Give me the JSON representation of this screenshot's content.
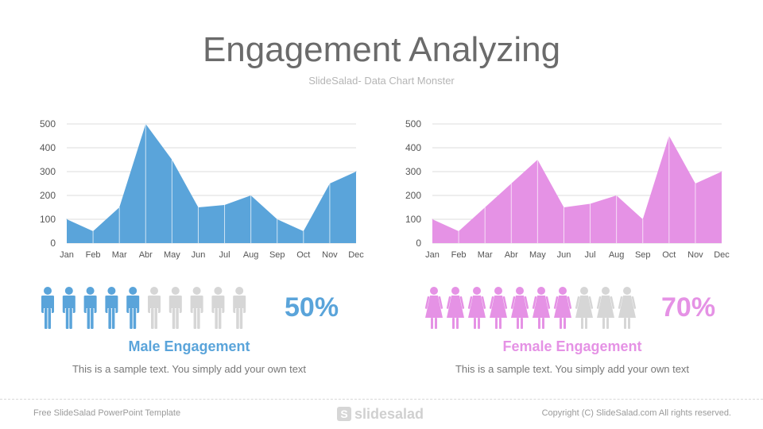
{
  "header": {
    "title": "Engagement Analyzing",
    "subtitle": "SlideSalad- Data Chart Monster"
  },
  "chart_data": [
    {
      "type": "area",
      "categories": [
        "Jan",
        "Feb",
        "Mar",
        "Abr",
        "May",
        "Jun",
        "Jul",
        "Aug",
        "Sep",
        "Oct",
        "Nov",
        "Dec"
      ],
      "values": [
        100,
        50,
        150,
        500,
        350,
        150,
        160,
        200,
        100,
        50,
        250,
        300
      ],
      "yticks": [
        "0",
        "100",
        "200",
        "300",
        "400",
        "500"
      ],
      "ylim": [
        0,
        500
      ],
      "grid": true,
      "color": "#5aa4da"
    },
    {
      "type": "area",
      "categories": [
        "Jan",
        "Feb",
        "Mar",
        "Abr",
        "May",
        "Jun",
        "Jul",
        "Aug",
        "Sep",
        "Oct",
        "Nov",
        "Dec"
      ],
      "values": [
        100,
        50,
        150,
        250,
        350,
        150,
        165,
        200,
        100,
        450,
        250,
        300
      ],
      "yticks": [
        "0",
        "100",
        "200",
        "300",
        "400",
        "500"
      ],
      "ylim": [
        0,
        500
      ],
      "grid": true,
      "color": "#e592e5"
    }
  ],
  "male": {
    "percent": "50%",
    "label": "Male Engagement",
    "description": "This is a sample text. You simply add your own text",
    "filled": 5,
    "total": 10,
    "icon": "male-person-icon",
    "color": "#5aa4da"
  },
  "female": {
    "percent": "70%",
    "label": "Female Engagement",
    "description": "This is a sample text. You simply add your own text",
    "filled": 7,
    "total": 10,
    "icon": "female-person-icon",
    "color": "#e592e5"
  },
  "inactive_color": "#d6d6d6",
  "footer": {
    "left": "Free SlideSalad PowerPoint Template",
    "logo_mark": "S",
    "logo": "slidesalad",
    "right": "Copyright (C) SlideSalad.com All rights reserved."
  }
}
